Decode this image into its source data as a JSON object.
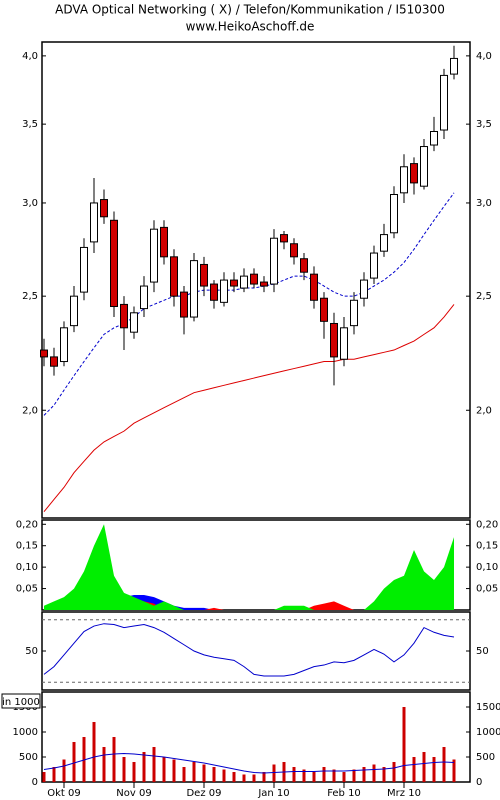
{
  "chart_data": [
    {
      "type": "candlestick",
      "title": "ADVA Optical Networking  ( X)   / Telefon/Kommunikation / I510300",
      "subtitle": "www.HeikoAschoff.de",
      "open": [
        2.25,
        2.22,
        2.2,
        2.36,
        2.52,
        2.78,
        3.02,
        2.9,
        2.46,
        2.33,
        2.44,
        2.57,
        2.86,
        2.7,
        2.52,
        2.4,
        2.66,
        2.56,
        2.47,
        2.58,
        2.54,
        2.61,
        2.57,
        2.56,
        2.82,
        2.77,
        2.69,
        2.61,
        2.49,
        2.37,
        2.21,
        2.36,
        2.49,
        2.59,
        2.73,
        2.83,
        3.06,
        3.24,
        3.1,
        3.36,
        3.46,
        3.86
      ],
      "high": [
        2.3,
        2.26,
        2.38,
        2.55,
        2.8,
        3.15,
        3.08,
        2.95,
        2.5,
        2.45,
        2.6,
        2.9,
        2.9,
        2.74,
        2.55,
        2.72,
        2.7,
        2.58,
        2.62,
        2.62,
        2.64,
        2.64,
        2.6,
        2.85,
        2.84,
        2.8,
        2.72,
        2.65,
        2.52,
        2.42,
        2.4,
        2.52,
        2.62,
        2.76,
        2.88,
        3.1,
        3.3,
        3.28,
        3.4,
        3.55,
        3.9,
        4.08
      ],
      "low": [
        2.18,
        2.14,
        2.18,
        2.33,
        2.48,
        2.72,
        2.88,
        2.4,
        2.25,
        2.3,
        2.4,
        2.52,
        2.66,
        2.45,
        2.32,
        2.38,
        2.5,
        2.44,
        2.45,
        2.52,
        2.52,
        2.54,
        2.52,
        2.52,
        2.74,
        2.66,
        2.58,
        2.44,
        2.3,
        2.1,
        2.18,
        2.32,
        2.45,
        2.56,
        2.7,
        2.8,
        3.0,
        3.05,
        3.08,
        3.32,
        3.4,
        3.82
      ],
      "close": [
        2.22,
        2.18,
        2.35,
        2.5,
        2.75,
        3.0,
        2.92,
        2.45,
        2.35,
        2.42,
        2.55,
        2.85,
        2.7,
        2.5,
        2.4,
        2.68,
        2.55,
        2.48,
        2.58,
        2.55,
        2.6,
        2.56,
        2.55,
        2.8,
        2.78,
        2.7,
        2.62,
        2.48,
        2.38,
        2.22,
        2.35,
        2.48,
        2.58,
        2.72,
        2.82,
        3.05,
        3.22,
        3.12,
        3.35,
        3.45,
        3.85,
        3.98
      ],
      "up_color": "#ffffff",
      "down_color": "#d00000",
      "lines": [
        {
          "color": "#0000cc",
          "dashed": true,
          "values": [
            1.98,
            2.02,
            2.08,
            2.14,
            2.2,
            2.26,
            2.32,
            2.35,
            2.37,
            2.4,
            2.44,
            2.46,
            2.48,
            2.5,
            2.5,
            2.52,
            2.53,
            2.53,
            2.53,
            2.53,
            2.54,
            2.54,
            2.55,
            2.56,
            2.58,
            2.6,
            2.6,
            2.58,
            2.55,
            2.52,
            2.5,
            2.5,
            2.52,
            2.55,
            2.58,
            2.62,
            2.67,
            2.74,
            2.82,
            2.9,
            2.98,
            3.06
          ]
        },
        {
          "color": "#dd0000",
          "dashed": false,
          "values": [
            1.64,
            1.68,
            1.72,
            1.77,
            1.81,
            1.85,
            1.88,
            1.9,
            1.92,
            1.95,
            1.97,
            1.99,
            2.01,
            2.03,
            2.05,
            2.07,
            2.08,
            2.09,
            2.1,
            2.11,
            2.12,
            2.13,
            2.14,
            2.15,
            2.16,
            2.17,
            2.18,
            2.19,
            2.2,
            2.2,
            2.21,
            2.21,
            2.22,
            2.23,
            2.24,
            2.25,
            2.27,
            2.29,
            2.32,
            2.35,
            2.4,
            2.46
          ]
        }
      ],
      "log_scale": true,
      "ylim": [
        1.62,
        4.11
      ],
      "yticks": [
        {
          "value": 2,
          "label": "2,0"
        },
        {
          "value": 2.5,
          "label": "2,5"
        },
        {
          "value": 3,
          "label": "3,0"
        },
        {
          "value": 3.5,
          "label": "3,5"
        },
        {
          "value": 4,
          "label": "4,0"
        }
      ]
    },
    {
      "type": "area",
      "ylim": [
        0,
        0.21
      ],
      "yticks": [
        {
          "value": 0.05,
          "label": "0,05"
        },
        {
          "value": 0.1,
          "label": "0,10"
        },
        {
          "value": 0.15,
          "label": "0,15"
        },
        {
          "value": 0.2,
          "label": "0,20"
        }
      ],
      "series": [
        {
          "color": "#0000ff",
          "values": [
            0,
            0,
            0,
            0,
            0,
            0,
            0,
            0,
            0.03,
            0.035,
            0.035,
            0.03,
            0.02,
            0.01,
            0.005,
            0.005,
            0.005,
            0,
            0,
            0,
            0,
            0,
            0,
            0,
            0,
            0,
            0,
            0,
            0,
            0,
            0,
            0,
            0,
            0,
            0,
            0,
            0,
            0,
            0,
            0,
            0,
            0
          ]
        },
        {
          "color": "#ff0000",
          "values": [
            0,
            0,
            0,
            0,
            0,
            0,
            0,
            0,
            0.02,
            0.025,
            0.02,
            0.015,
            0,
            0,
            0,
            0,
            0,
            0.005,
            0,
            0,
            0,
            0,
            0,
            0,
            0,
            0,
            0,
            0.01,
            0.015,
            0.02,
            0.01,
            0,
            0,
            0,
            0,
            0,
            0,
            0,
            0,
            0,
            0,
            0
          ]
        },
        {
          "color": "#00ee00",
          "values": [
            0.01,
            0.02,
            0.03,
            0.05,
            0.09,
            0.15,
            0.2,
            0.08,
            0.04,
            0.03,
            0.02,
            0.01,
            0.02,
            0.01,
            0,
            0,
            0,
            0,
            0,
            0,
            0,
            0,
            0,
            0,
            0.01,
            0.01,
            0.01,
            0,
            0,
            0,
            0,
            0,
            0,
            0.02,
            0.05,
            0.07,
            0.08,
            0.14,
            0.09,
            0.07,
            0.1,
            0.17
          ]
        }
      ]
    },
    {
      "type": "line",
      "color": "#0000cc",
      "ylim": [
        0,
        100
      ],
      "yticks": [
        50
      ],
      "reference_lines": [
        10,
        90
      ],
      "values": [
        20,
        30,
        45,
        60,
        75,
        82,
        85,
        84,
        80,
        82,
        84,
        80,
        74,
        66,
        58,
        50,
        45,
        42,
        40,
        38,
        30,
        20,
        18,
        18,
        18,
        20,
        25,
        30,
        32,
        36,
        35,
        38,
        45,
        52,
        46,
        36,
        45,
        60,
        80,
        74,
        70,
        68
      ]
    },
    {
      "type": "bar",
      "unit_label": "in 1000",
      "color": "#cc0000",
      "ylim": [
        0,
        1800
      ],
      "yticks": [
        0,
        500,
        1000,
        1500
      ],
      "values": [
        200,
        300,
        450,
        800,
        900,
        1200,
        700,
        900,
        500,
        400,
        600,
        700,
        500,
        450,
        300,
        400,
        350,
        300,
        250,
        200,
        150,
        150,
        200,
        350,
        400,
        300,
        250,
        200,
        300,
        250,
        200,
        250,
        300,
        350,
        300,
        400,
        1500,
        500,
        600,
        500,
        700,
        450
      ],
      "line": {
        "color": "#0000cc",
        "values": [
          250,
          280,
          320,
          380,
          440,
          500,
          540,
          560,
          570,
          560,
          540,
          520,
          500,
          470,
          440,
          410,
          380,
          340,
          300,
          260,
          220,
          190,
          180,
          190,
          200,
          210,
          210,
          210,
          220,
          220,
          220,
          230,
          240,
          250,
          260,
          280,
          330,
          350,
          370,
          390,
          400,
          390
        ]
      },
      "xlim": [
        -0.2,
        42.6
      ],
      "xticks": [
        {
          "value": 2,
          "label": "Okt 09"
        },
        {
          "value": 9,
          "label": "Nov 09"
        },
        {
          "value": 16,
          "label": "Dez 09"
        },
        {
          "value": 23,
          "label": "Jan 10"
        },
        {
          "value": 30,
          "label": "Feb 10"
        },
        {
          "value": 36,
          "label": "Mrz 10"
        }
      ]
    }
  ]
}
